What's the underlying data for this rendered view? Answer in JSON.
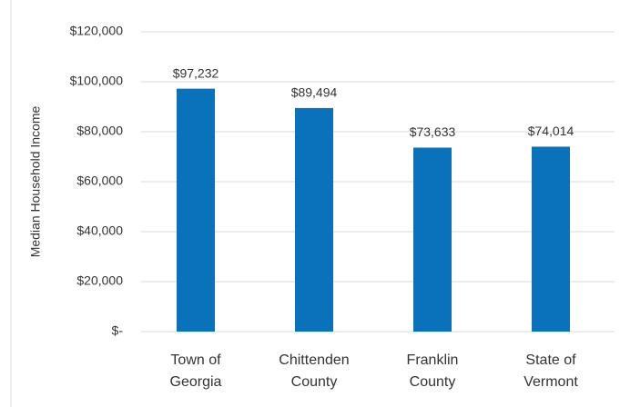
{
  "chart_data": {
    "type": "bar",
    "y_axis_label": "Median Household Income",
    "categories": [
      "Town of Georgia",
      "Chittenden County",
      "Franklin County",
      "State of Vermont"
    ],
    "values": [
      97232,
      89494,
      73633,
      74014
    ],
    "value_labels": [
      "$97,232",
      "$89,494",
      "$73,633",
      "$74,014"
    ],
    "color": "#0a72ba",
    "ylim": [
      0,
      120000
    ],
    "yticks": [
      {
        "value": 0,
        "label": "$-"
      },
      {
        "value": 20000,
        "label": "$20,000"
      },
      {
        "value": 40000,
        "label": "$40,000"
      },
      {
        "value": 60000,
        "label": "$60,000"
      },
      {
        "value": 80000,
        "label": "$80,000"
      },
      {
        "value": 100000,
        "label": "$100,000"
      },
      {
        "value": 120000,
        "label": "$120,000"
      }
    ],
    "grid": true
  }
}
